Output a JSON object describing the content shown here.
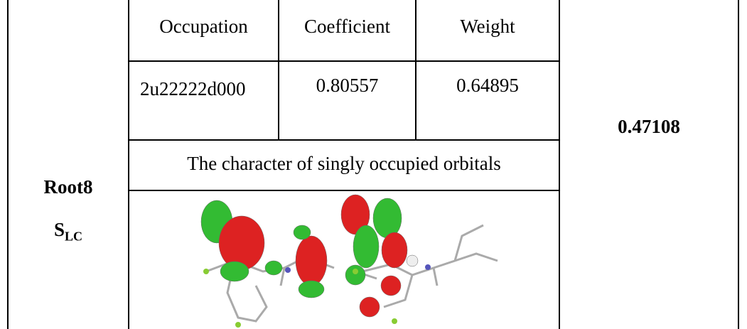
{
  "table": {
    "row_label": {
      "name": "Root8",
      "state_main": "S",
      "state_sub": "LC"
    },
    "header": [
      "Occupation",
      "Coefficient",
      "Weight"
    ],
    "row": [
      "2u22222d000",
      "0.80557",
      "0.64895"
    ],
    "caption": "The character of singly occupied orbitals",
    "total": "0.47108"
  }
}
